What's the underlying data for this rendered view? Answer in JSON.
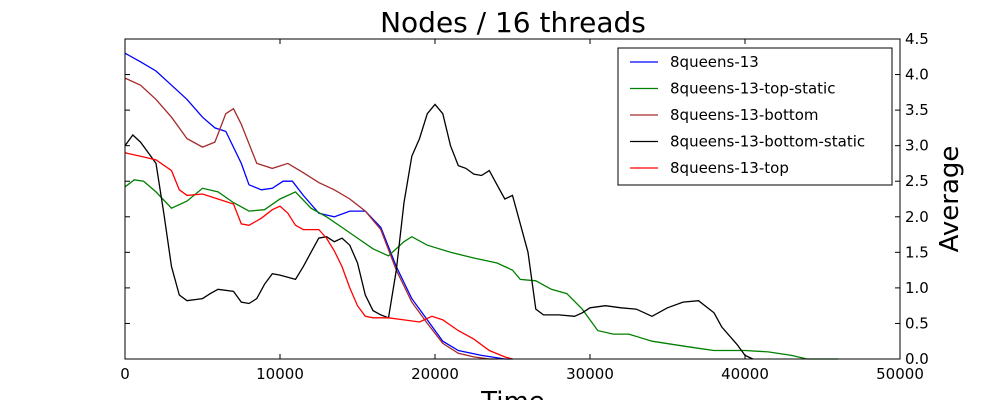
{
  "chart_data": {
    "type": "line",
    "title": "Nodes / 16 threads",
    "xlabel": "Time",
    "ylabel": "Average",
    "xlim": [
      0,
      50000
    ],
    "ylim": [
      0,
      4.5
    ],
    "x_ticks": [
      "0",
      "10000",
      "20000",
      "30000",
      "40000",
      "50000"
    ],
    "y_ticks": [
      "0.0",
      "0.5",
      "1.0",
      "1.5",
      "2.0",
      "2.5",
      "3.0",
      "3.5",
      "4.0",
      "4.5"
    ],
    "y_axis_side": "right",
    "grid": false,
    "legend_position": "top-right",
    "series": [
      {
        "name": "8queens-13",
        "color": "#0000ff",
        "points": [
          [
            0,
            4.3
          ],
          [
            1000,
            4.18
          ],
          [
            2000,
            4.05
          ],
          [
            3000,
            3.85
          ],
          [
            4000,
            3.65
          ],
          [
            5000,
            3.4
          ],
          [
            5800,
            3.25
          ],
          [
            6500,
            3.2
          ],
          [
            7500,
            2.75
          ],
          [
            8000,
            2.45
          ],
          [
            8800,
            2.38
          ],
          [
            9500,
            2.4
          ],
          [
            10200,
            2.5
          ],
          [
            10800,
            2.5
          ],
          [
            11500,
            2.3
          ],
          [
            12500,
            2.05
          ],
          [
            13500,
            2.0
          ],
          [
            14500,
            2.08
          ],
          [
            15500,
            2.08
          ],
          [
            16500,
            1.85
          ],
          [
            17500,
            1.3
          ],
          [
            18500,
            0.85
          ],
          [
            19500,
            0.55
          ],
          [
            20500,
            0.25
          ],
          [
            21500,
            0.12
          ],
          [
            23000,
            0.05
          ],
          [
            24500,
            0.0
          ],
          [
            25000,
            0.0
          ]
        ]
      },
      {
        "name": "8queens-13-top-static",
        "color": "#008000",
        "points": [
          [
            0,
            2.42
          ],
          [
            600,
            2.52
          ],
          [
            1200,
            2.5
          ],
          [
            2000,
            2.35
          ],
          [
            3000,
            2.12
          ],
          [
            4000,
            2.22
          ],
          [
            5000,
            2.4
          ],
          [
            6000,
            2.35
          ],
          [
            7000,
            2.2
          ],
          [
            8000,
            2.08
          ],
          [
            9000,
            2.1
          ],
          [
            10000,
            2.25
          ],
          [
            11000,
            2.35
          ],
          [
            12000,
            2.12
          ],
          [
            13000,
            2.0
          ],
          [
            14000,
            1.85
          ],
          [
            15000,
            1.7
          ],
          [
            16000,
            1.55
          ],
          [
            17000,
            1.45
          ],
          [
            18000,
            1.65
          ],
          [
            18500,
            1.72
          ],
          [
            19500,
            1.6
          ],
          [
            21000,
            1.5
          ],
          [
            22500,
            1.42
          ],
          [
            24000,
            1.35
          ],
          [
            25000,
            1.25
          ],
          [
            25500,
            1.12
          ],
          [
            26500,
            1.1
          ],
          [
            27500,
            0.98
          ],
          [
            28500,
            0.92
          ],
          [
            29500,
            0.7
          ],
          [
            30500,
            0.4
          ],
          [
            31500,
            0.35
          ],
          [
            32500,
            0.35
          ],
          [
            34000,
            0.25
          ],
          [
            35500,
            0.2
          ],
          [
            37000,
            0.15
          ],
          [
            38000,
            0.12
          ],
          [
            40000,
            0.12
          ],
          [
            41500,
            0.1
          ],
          [
            43000,
            0.05
          ],
          [
            44000,
            0.0
          ],
          [
            46000,
            0.0
          ]
        ]
      },
      {
        "name": "8queens-13-bottom",
        "color": "#a52a2a",
        "points": [
          [
            0,
            3.95
          ],
          [
            1000,
            3.85
          ],
          [
            2000,
            3.65
          ],
          [
            3000,
            3.4
          ],
          [
            4000,
            3.1
          ],
          [
            5000,
            2.98
          ],
          [
            5800,
            3.05
          ],
          [
            6500,
            3.45
          ],
          [
            7000,
            3.52
          ],
          [
            7500,
            3.3
          ],
          [
            8500,
            2.75
          ],
          [
            9500,
            2.68
          ],
          [
            10500,
            2.75
          ],
          [
            11500,
            2.62
          ],
          [
            12500,
            2.48
          ],
          [
            13500,
            2.38
          ],
          [
            14500,
            2.25
          ],
          [
            15500,
            2.08
          ],
          [
            16500,
            1.82
          ],
          [
            17500,
            1.25
          ],
          [
            18500,
            0.8
          ],
          [
            19500,
            0.5
          ],
          [
            20500,
            0.22
          ],
          [
            21500,
            0.08
          ],
          [
            22500,
            0.03
          ],
          [
            23500,
            0.0
          ],
          [
            24000,
            0.0
          ]
        ]
      },
      {
        "name": "8queens-13-bottom-static",
        "color": "#000000",
        "points": [
          [
            0,
            3.0
          ],
          [
            500,
            3.15
          ],
          [
            1000,
            3.05
          ],
          [
            1500,
            2.9
          ],
          [
            2000,
            2.75
          ],
          [
            2500,
            2.05
          ],
          [
            3000,
            1.3
          ],
          [
            3500,
            0.9
          ],
          [
            4000,
            0.82
          ],
          [
            5000,
            0.85
          ],
          [
            5500,
            0.92
          ],
          [
            6000,
            0.98
          ],
          [
            7000,
            0.95
          ],
          [
            7500,
            0.8
          ],
          [
            8000,
            0.78
          ],
          [
            8500,
            0.85
          ],
          [
            9000,
            1.05
          ],
          [
            9500,
            1.2
          ],
          [
            10000,
            1.18
          ],
          [
            10500,
            1.15
          ],
          [
            11000,
            1.12
          ],
          [
            11500,
            1.3
          ],
          [
            12000,
            1.5
          ],
          [
            12500,
            1.7
          ],
          [
            13000,
            1.72
          ],
          [
            13500,
            1.65
          ],
          [
            14000,
            1.7
          ],
          [
            14500,
            1.6
          ],
          [
            15000,
            1.35
          ],
          [
            15500,
            0.9
          ],
          [
            16000,
            0.68
          ],
          [
            16500,
            0.62
          ],
          [
            17000,
            0.58
          ],
          [
            17500,
            1.25
          ],
          [
            18000,
            2.2
          ],
          [
            18500,
            2.85
          ],
          [
            19000,
            3.1
          ],
          [
            19500,
            3.45
          ],
          [
            20000,
            3.58
          ],
          [
            20500,
            3.45
          ],
          [
            21000,
            3.0
          ],
          [
            21500,
            2.72
          ],
          [
            22000,
            2.68
          ],
          [
            22500,
            2.6
          ],
          [
            23000,
            2.58
          ],
          [
            23500,
            2.65
          ],
          [
            24000,
            2.45
          ],
          [
            24500,
            2.25
          ],
          [
            25000,
            2.3
          ],
          [
            25500,
            1.9
          ],
          [
            26000,
            1.5
          ],
          [
            26500,
            0.7
          ],
          [
            27000,
            0.62
          ],
          [
            28000,
            0.62
          ],
          [
            29000,
            0.6
          ],
          [
            29500,
            0.65
          ],
          [
            30000,
            0.72
          ],
          [
            31000,
            0.75
          ],
          [
            32000,
            0.72
          ],
          [
            33000,
            0.7
          ],
          [
            34000,
            0.6
          ],
          [
            35000,
            0.72
          ],
          [
            36000,
            0.8
          ],
          [
            37000,
            0.82
          ],
          [
            38000,
            0.65
          ],
          [
            38500,
            0.45
          ],
          [
            39500,
            0.2
          ],
          [
            40000,
            0.05
          ],
          [
            40500,
            0.0
          ]
        ]
      },
      {
        "name": "8queens-13-top",
        "color": "#ff0000",
        "points": [
          [
            0,
            2.9
          ],
          [
            1000,
            2.85
          ],
          [
            2000,
            2.8
          ],
          [
            3000,
            2.65
          ],
          [
            3500,
            2.38
          ],
          [
            4000,
            2.3
          ],
          [
            5000,
            2.32
          ],
          [
            6000,
            2.25
          ],
          [
            7000,
            2.18
          ],
          [
            7500,
            1.9
          ],
          [
            8000,
            1.88
          ],
          [
            8800,
            1.98
          ],
          [
            9500,
            2.1
          ],
          [
            10000,
            2.15
          ],
          [
            10500,
            2.05
          ],
          [
            11000,
            1.88
          ],
          [
            11500,
            1.82
          ],
          [
            12500,
            1.82
          ],
          [
            13000,
            1.7
          ],
          [
            13500,
            1.52
          ],
          [
            14000,
            1.3
          ],
          [
            14500,
            1.0
          ],
          [
            15000,
            0.75
          ],
          [
            15500,
            0.6
          ],
          [
            16000,
            0.58
          ],
          [
            17000,
            0.58
          ],
          [
            18000,
            0.55
          ],
          [
            19000,
            0.52
          ],
          [
            19800,
            0.6
          ],
          [
            20500,
            0.55
          ],
          [
            21500,
            0.4
          ],
          [
            22500,
            0.28
          ],
          [
            23500,
            0.12
          ],
          [
            24500,
            0.03
          ],
          [
            25000,
            0.0
          ]
        ]
      }
    ]
  }
}
